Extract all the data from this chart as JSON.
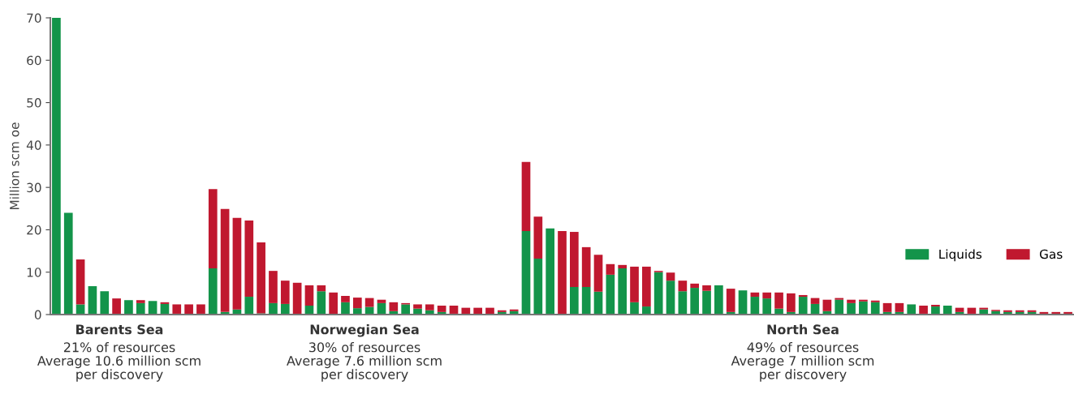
{
  "chart_data": {
    "type": "bar",
    "stacked": true,
    "ylabel": "Million scm oe",
    "categories": [
      null,
      null,
      null,
      null,
      null,
      null,
      null,
      null,
      null,
      null,
      null,
      null,
      null,
      null,
      null,
      null,
      null,
      null,
      null,
      null,
      null,
      null,
      null,
      null,
      null,
      null,
      null,
      null,
      null,
      null,
      null,
      null,
      null,
      null,
      null,
      null,
      null,
      null,
      null,
      null,
      null,
      null,
      null,
      null,
      null,
      null,
      null,
      null,
      null,
      null,
      null,
      null,
      null,
      null,
      null,
      null,
      null,
      null,
      null,
      null,
      null,
      null,
      null,
      null,
      null,
      null,
      null,
      null,
      null,
      null,
      null,
      null,
      null,
      null,
      null,
      null,
      null,
      null,
      null,
      null,
      null,
      null,
      null,
      null,
      null
    ],
    "series": [
      {
        "name": "Liquids",
        "color": "#13944a",
        "values": [
          70,
          24,
          2.4,
          6.7,
          5.5,
          0,
          3.4,
          2.7,
          3.2,
          2.5,
          0.2,
          0,
          0.2,
          10.9,
          0.6,
          1.2,
          4.2,
          0.3,
          2.7,
          2.5,
          0,
          2.1,
          5.5,
          0,
          2.9,
          1.5,
          1.8,
          2.7,
          0.8,
          2.4,
          1.4,
          1,
          0.6,
          0.2,
          0.1,
          0.1,
          0,
          0.6,
          0.8,
          19.7,
          13.2,
          20.3,
          0,
          6.5,
          6.5,
          5.4,
          9.4,
          10.9,
          2.9,
          1.9,
          10,
          8,
          5.5,
          6.3,
          5.6,
          6.9,
          0.6,
          5.7,
          4.2,
          3.8,
          1.4,
          0.6,
          4.2,
          2.5,
          0.8,
          3.5,
          2.7,
          3.1,
          2.9,
          0.6,
          0.6,
          2.4,
          0.2,
          1.9,
          2.1,
          0.6,
          0.2,
          1.2,
          0.8,
          0.6,
          0.6,
          0.6,
          0.2,
          0.2,
          0.2
        ]
      },
      {
        "name": "Gas",
        "color": "#c0182f",
        "values": [
          0,
          0,
          10.6,
          0,
          0,
          3.8,
          0,
          0.7,
          0,
          0.4,
          2.2,
          2.4,
          2.2,
          18.7,
          24.3,
          21.6,
          18,
          16.7,
          7.6,
          5.5,
          7.5,
          4.8,
          1.4,
          5.2,
          1.5,
          2.5,
          2.1,
          0.8,
          2.1,
          0.3,
          1,
          1.4,
          1.5,
          1.9,
          1.5,
          1.5,
          1.6,
          0.4,
          0.4,
          16.3,
          9.9,
          0,
          19.7,
          13,
          9.4,
          8.7,
          2.5,
          0.8,
          8.4,
          9.4,
          0.3,
          1.9,
          2.5,
          1,
          1.3,
          0,
          5.5,
          0,
          1,
          1.4,
          3.8,
          4.4,
          0.4,
          1.4,
          2.7,
          0.4,
          0.8,
          0.4,
          0.4,
          2.1,
          2.1,
          0,
          1.9,
          0.4,
          0,
          1,
          1.4,
          0.4,
          0.3,
          0.4,
          0.4,
          0.4,
          0.4,
          0.4,
          0.4
        ]
      }
    ],
    "ylim": [
      0,
      70
    ],
    "yticks": [
      0,
      10,
      20,
      30,
      40,
      50,
      60,
      70
    ],
    "grid": false,
    "legend": "right",
    "tick_labels": "y",
    "annotations": [
      "Barents Sea\n21% of resources\nAverage 10.6 million scm\nper discovery",
      "Norwegian Sea\n30% of resources\nAverage 7.6 million scm\nper discovery",
      "North Sea\n49% of resources\nAverage 7 million scm\nper discovery"
    ]
  }
}
